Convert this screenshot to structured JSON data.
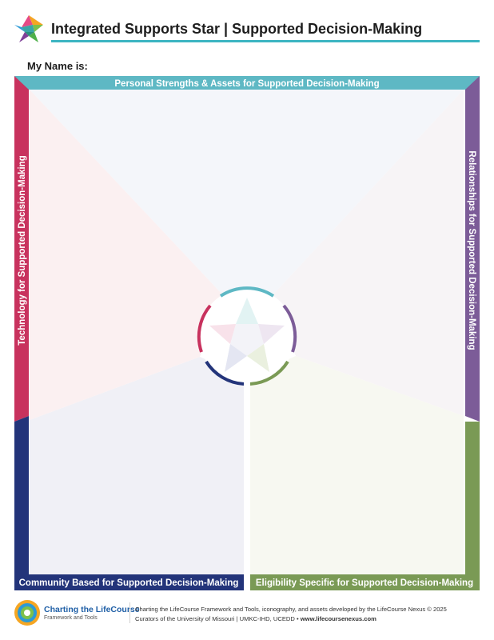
{
  "header": {
    "title": "Integrated Supports Star  |  Supported Decision-Making",
    "logo_icon": "star-logo-icon"
  },
  "form": {
    "name_label": "My Name is:"
  },
  "sections": {
    "top": "Personal Strengths & Assets for Supported Decision-Making",
    "right": "Relationships for Supported Decision-Making",
    "bottom_right": "Eligibility Specific for Supported Decision-Making",
    "bottom_left": "Community Based for Supported Decision-Making",
    "left": "Technology for Supported Decision-Making"
  },
  "colors": {
    "top": "#5eb8c4",
    "right": "#7c5c98",
    "bottom_right": "#7a9a55",
    "bottom_left": "#23347a",
    "left": "#c8325e"
  },
  "footer": {
    "brand": "Charting the LifeCourse",
    "brand_sub": "Framework and Tools",
    "credits_line1": "Charting the LifeCourse Framework and Tools, iconography, and assets developed by the LifeCourse Nexus © 2025",
    "credits_line2_a": "Curators of the University of Missouri | UMKC-IHD, UCEDD • ",
    "credits_line2_b": "www.lifecoursenexus.com"
  }
}
